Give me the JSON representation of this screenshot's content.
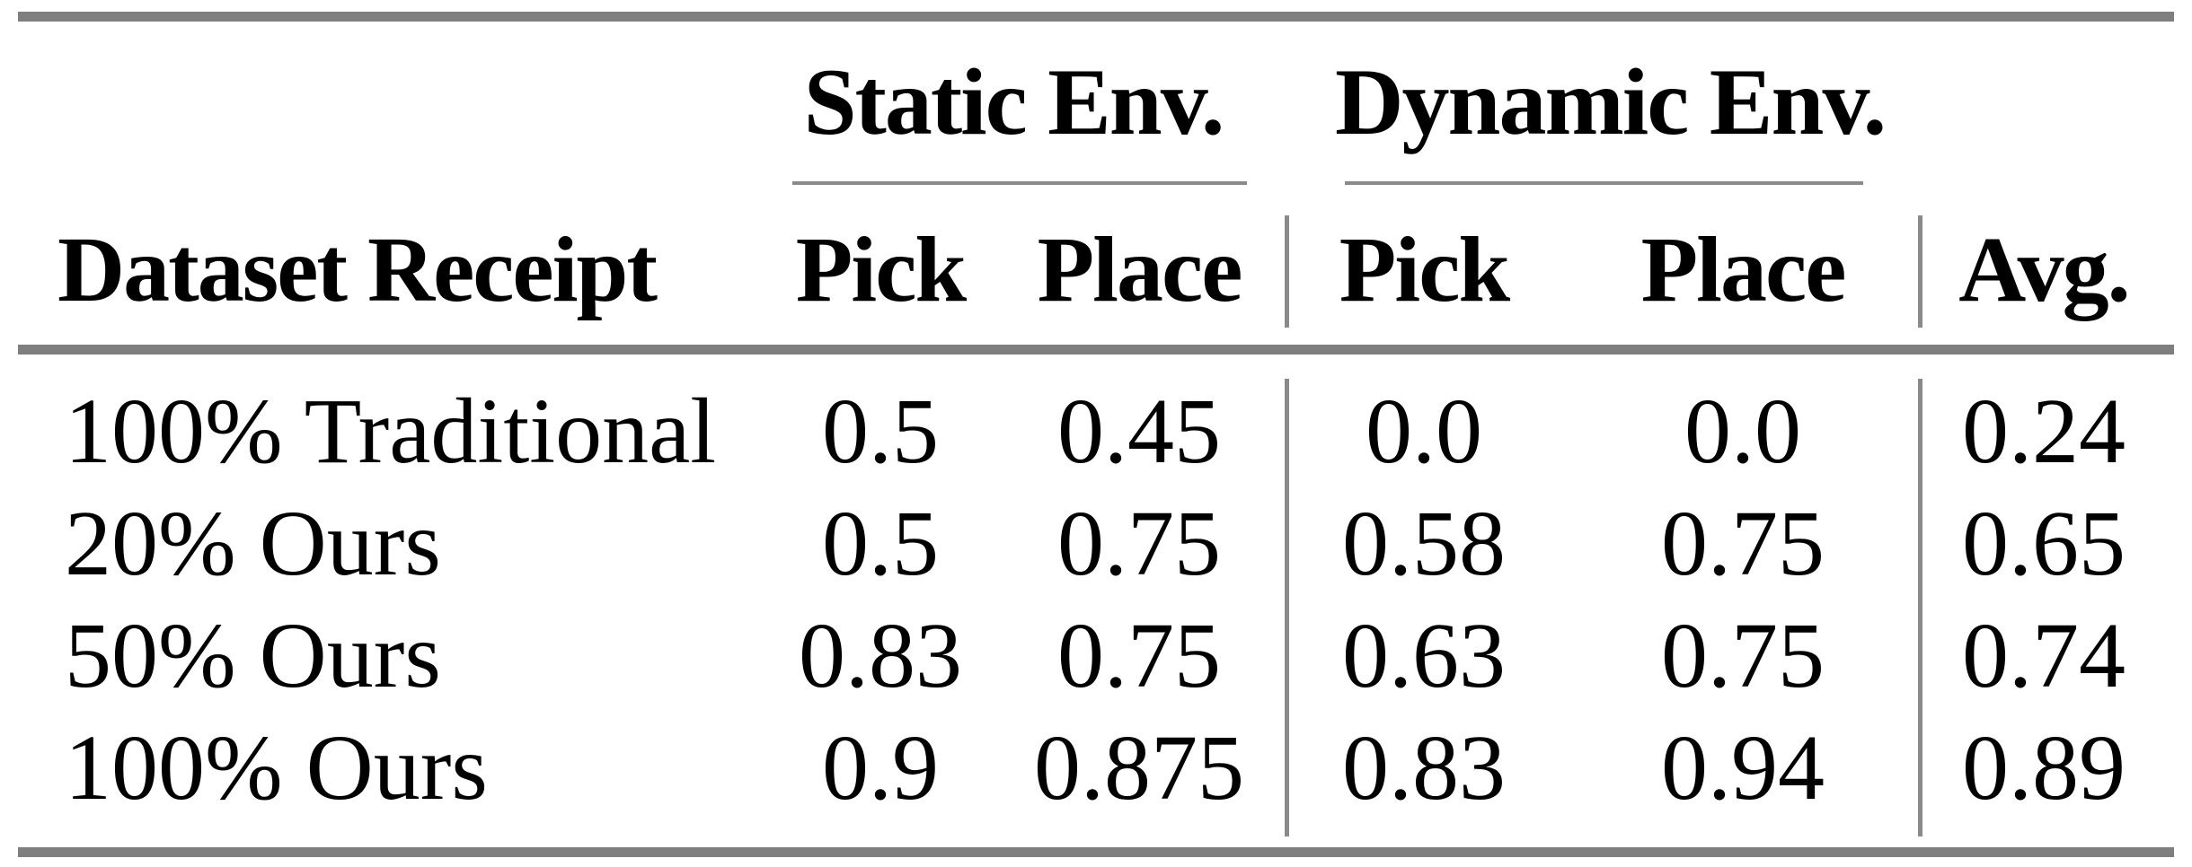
{
  "table": {
    "row_header": "Dataset Receipt",
    "groups": [
      {
        "label": "Static Env.",
        "columns": [
          "Pick",
          "Place"
        ]
      },
      {
        "label": "Dynamic Env.",
        "columns": [
          "Pick",
          "Place"
        ]
      }
    ],
    "avg_header": "Avg.",
    "rows": [
      {
        "label": "100% Traditional",
        "cells": [
          "0.5",
          "0.45",
          "0.0",
          "0.0",
          "0.24"
        ]
      },
      {
        "label": "20% Ours",
        "cells": [
          "0.5",
          "0.75",
          "0.58",
          "0.75",
          "0.65"
        ]
      },
      {
        "label": "50% Ours",
        "cells": [
          "0.83",
          "0.75",
          "0.63",
          "0.75",
          "0.74"
        ]
      },
      {
        "label": "100% Ours",
        "cells": [
          "0.9",
          "0.875",
          "0.83",
          "0.94",
          "0.89"
        ]
      }
    ],
    "colors": {
      "thick_rule": "#7f7f7f",
      "thin_rule": "#8a8a8a",
      "text": "#000000",
      "background": "#ffffff"
    }
  },
  "chart_data": {
    "type": "table",
    "columns": [
      "Dataset Receipt",
      "Static Env. Pick",
      "Static Env. Place",
      "Dynamic Env. Pick",
      "Dynamic Env. Place",
      "Avg."
    ],
    "rows": [
      [
        "100% Traditional",
        0.5,
        0.45,
        0.0,
        0.0,
        0.24
      ],
      [
        "20% Ours",
        0.5,
        0.75,
        0.58,
        0.75,
        0.65
      ],
      [
        "50% Ours",
        0.83,
        0.75,
        0.63,
        0.75,
        0.74
      ],
      [
        "100% Ours",
        0.9,
        0.875,
        0.83,
        0.94,
        0.89
      ]
    ]
  }
}
